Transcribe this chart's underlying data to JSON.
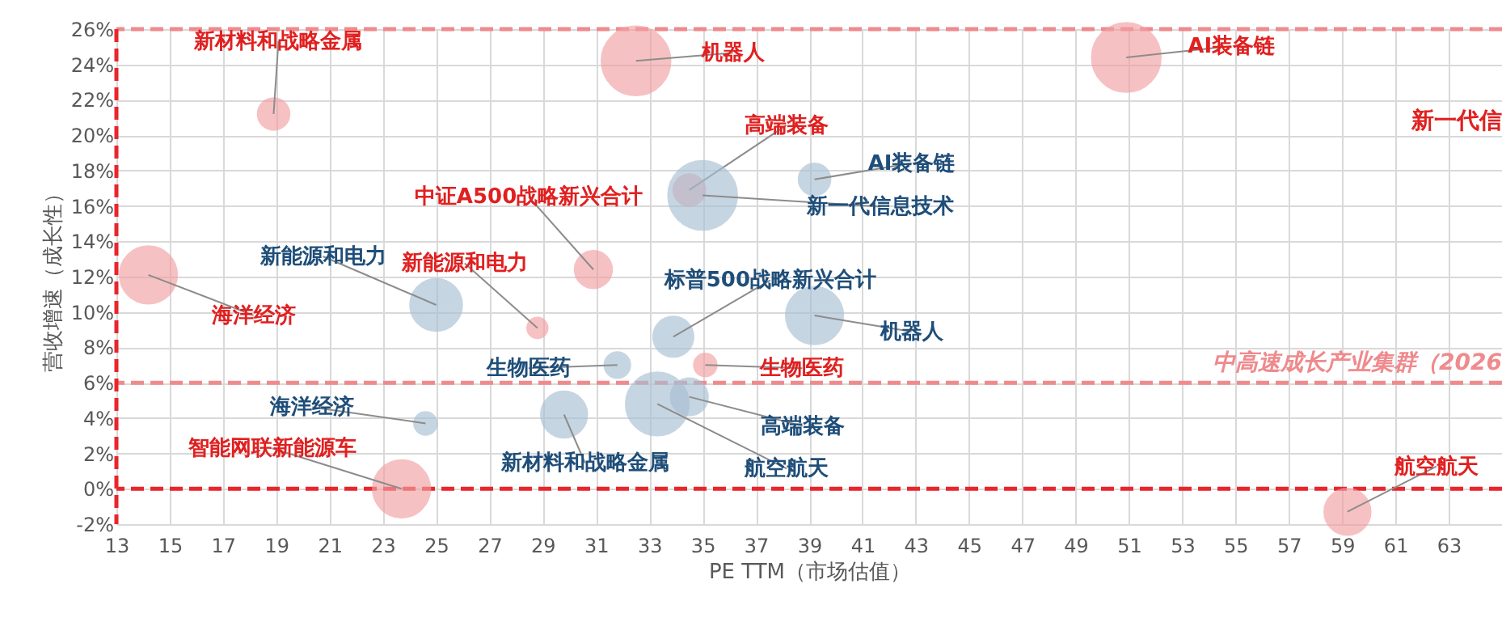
{
  "chart_data": {
    "type": "bubble",
    "xlabel": "PE TTM（市场估值）",
    "ylabel": "营收增速（成长性）",
    "xlim": [
      13,
      65
    ],
    "xticks": [
      13,
      15,
      17,
      19,
      21,
      23,
      25,
      27,
      29,
      31,
      33,
      35,
      37,
      39,
      41,
      43,
      45,
      47,
      49,
      51,
      53,
      55,
      57,
      59,
      61,
      63
    ],
    "ylim": [
      -2,
      26
    ],
    "yticks": [
      {
        "value": -2,
        "label": "-2%"
      },
      {
        "value": 0,
        "label": "0%"
      },
      {
        "value": 2,
        "label": "2%"
      },
      {
        "value": 4,
        "label": "4%"
      },
      {
        "value": 6,
        "label": "6%"
      },
      {
        "value": 8,
        "label": "8%"
      },
      {
        "value": 10,
        "label": "10%"
      },
      {
        "value": 12,
        "label": "12%"
      },
      {
        "value": 14,
        "label": "14%"
      },
      {
        "value": 16,
        "label": "16%"
      },
      {
        "value": 18,
        "label": "18%"
      },
      {
        "value": 20,
        "label": "20%"
      },
      {
        "value": 22,
        "label": "22%"
      },
      {
        "value": 24,
        "label": "24%"
      },
      {
        "value": 26,
        "label": "26%"
      }
    ],
    "grid": true,
    "series": [
      {
        "color": "#f2a0a3",
        "x": [
          18.9,
          32.5,
          50.9,
          14.2,
          30.9,
          28.8,
          34.5,
          35.1,
          23.7,
          59.2
        ],
        "values": [
          21.2,
          24.2,
          24.4,
          12.1,
          12.4,
          9.1,
          16.9,
          7.0,
          0.0,
          -1.3
        ],
        "sizes": [
          0.19,
          1.0,
          1.0,
          0.68,
          0.27,
          0.07,
          0.19,
          0.09,
          0.68,
          0.43
        ],
        "value_labels": [
          "新材料和战略金属",
          "机器人",
          "AI装备链",
          "海洋经济",
          "中证A500战略新兴合计",
          "新能源和电力",
          "高端装备",
          "生物医药",
          "智能网联新能源车",
          "航空航天"
        ]
      },
      {
        "color": "#a9bfd4",
        "x": [
          25.0,
          24.6,
          29.8,
          31.8,
          33.9,
          39.2,
          39.2,
          35.0,
          34.5,
          33.3
        ],
        "values": [
          10.4,
          3.7,
          4.2,
          7.0,
          8.6,
          9.8,
          17.5,
          16.6,
          5.2,
          4.8
        ],
        "sizes": [
          0.55,
          0.09,
          0.43,
          0.12,
          0.32,
          0.68,
          0.19,
          1.0,
          0.27,
          0.83
        ],
        "value_labels": [
          "新能源和电力",
          "海洋经济",
          "新材料和战略金属",
          "生物医药",
          "标普500战略新兴合计",
          "机器人",
          "AI装备链",
          "新一代信息技术",
          "高端装备",
          "航空航天"
        ]
      }
    ],
    "ref_lines": [
      {
        "axis": "y",
        "value": 0,
        "color": "#e8262b",
        "line_style": "dashed"
      },
      {
        "axis": "y",
        "value": 6,
        "color": "#ef8a8d",
        "line_style": "dashed",
        "label": "中高速成长产业集群（2026"
      },
      {
        "axis": "y",
        "value": 26,
        "color": "#ef8a8d",
        "line_style": "dashed"
      },
      {
        "axis": "x",
        "value": 13,
        "color": "#e8262b",
        "line_style": "dashed"
      }
    ],
    "annotations": [
      "新一代信"
    ]
  }
}
